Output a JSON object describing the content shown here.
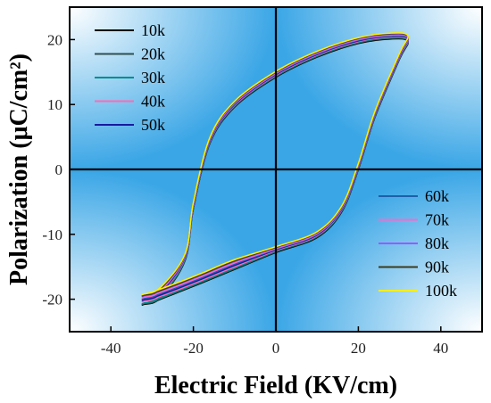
{
  "chart_data": {
    "type": "line",
    "xlabel": "Electric Field (KV/cm)",
    "ylabel": "Polarization (μC/cm²)",
    "xlim": [
      -50,
      50
    ],
    "ylim": [
      -25,
      25
    ],
    "x_ticks": [
      "-40",
      "-20",
      "0",
      "20",
      "40"
    ],
    "y_ticks": [
      "-20",
      "-10",
      "0",
      "10",
      "20"
    ],
    "legend_left": [
      "10k",
      "20k",
      "30k",
      "40k",
      "50k"
    ],
    "legend_right": [
      "60k",
      "70k",
      "80k",
      "90k",
      "100k"
    ],
    "background": "light-blue radial gradient quadrants",
    "series": [
      {
        "name": "10k",
        "color": "#000000",
        "x": [
          -32,
          -28,
          -22,
          -20,
          -16,
          -10,
          0,
          10,
          20,
          28,
          32,
          30,
          24,
          20,
          16,
          10,
          0,
          -10,
          -18,
          -24,
          -30,
          -32
        ],
        "y": [
          -20.8,
          -19.8,
          -14,
          -6,
          4,
          9.6,
          14.2,
          17.3,
          19.4,
          20.1,
          19.7,
          17,
          8,
          0,
          -6.5,
          -10.5,
          -12.8,
          -15.4,
          -17.5,
          -19,
          -20.5,
          -20.8
        ]
      },
      {
        "name": "20k",
        "color": "#2f4f4f",
        "x": [
          -32,
          -28,
          -22,
          -20,
          -16,
          -10,
          0,
          10,
          20,
          28,
          32,
          30,
          24,
          20,
          16,
          10,
          0,
          -10,
          -18,
          -24,
          -30,
          -32
        ],
        "y": [
          -20.7,
          -19.7,
          -13.9,
          -5.9,
          4.1,
          9.7,
          14.3,
          17.4,
          19.5,
          20.2,
          19.8,
          17.1,
          8.1,
          0.1,
          -6.4,
          -10.4,
          -12.7,
          -15.3,
          -17.4,
          -18.9,
          -20.4,
          -20.7
        ]
      },
      {
        "name": "30k",
        "color": "#008b8b",
        "x": [
          -32,
          -28,
          -22,
          -20,
          -16,
          -10,
          0,
          10,
          20,
          28,
          32,
          30,
          24,
          20,
          16,
          10,
          0,
          -10,
          -18,
          -24,
          -30,
          -32
        ],
        "y": [
          -20.6,
          -19.6,
          -13.8,
          -5.8,
          4.2,
          9.8,
          14.4,
          17.5,
          19.6,
          20.3,
          19.9,
          17.2,
          8.2,
          0.2,
          -6.3,
          -10.3,
          -12.6,
          -15.2,
          -17.3,
          -18.8,
          -20.3,
          -20.6
        ]
      },
      {
        "name": "40k",
        "color": "#ff69b4",
        "x": [
          -32,
          -28,
          -22,
          -20,
          -16,
          -10,
          0,
          10,
          20,
          28,
          32,
          30,
          24,
          20,
          16,
          10,
          0,
          -10,
          -18,
          -24,
          -30,
          -32
        ],
        "y": [
          -20.3,
          -19.3,
          -13.6,
          -5.7,
          4.3,
          9.9,
          14.5,
          17.6,
          19.7,
          20.4,
          20,
          17.3,
          8.3,
          0.3,
          -6.2,
          -10.2,
          -12.5,
          -15,
          -17.1,
          -18.6,
          -20,
          -20.3
        ]
      },
      {
        "name": "50k",
        "color": "#1a1aa0",
        "x": [
          -32,
          -28,
          -22,
          -20,
          -16,
          -10,
          0,
          10,
          20,
          28,
          32,
          30,
          24,
          20,
          16,
          10,
          0,
          -10,
          -18,
          -24,
          -30,
          -32
        ],
        "y": [
          -20.1,
          -19.1,
          -13.5,
          -5.6,
          4.4,
          10,
          14.6,
          17.7,
          19.8,
          20.5,
          20.1,
          17.4,
          8.4,
          0.4,
          -6.1,
          -10.1,
          -12.4,
          -14.8,
          -16.9,
          -18.4,
          -19.8,
          -20.1
        ]
      },
      {
        "name": "60k",
        "color": "#1f5fa8",
        "x": [
          -32,
          -28,
          -22,
          -20,
          -16,
          -10,
          0,
          10,
          20,
          28,
          32,
          30,
          24,
          20,
          16,
          10,
          0,
          -10,
          -18,
          -24,
          -30,
          -32
        ],
        "y": [
          -19.9,
          -18.9,
          -13.4,
          -5.5,
          4.5,
          10.1,
          14.7,
          17.8,
          19.9,
          20.6,
          20.2,
          17.5,
          8.5,
          0.5,
          -6,
          -10,
          -12.3,
          -14.6,
          -16.7,
          -18.2,
          -19.6,
          -19.9
        ]
      },
      {
        "name": "70k",
        "color": "#ff66cc",
        "x": [
          -32,
          -28,
          -22,
          -20,
          -16,
          -10,
          0,
          10,
          20,
          28,
          32,
          30,
          24,
          20,
          16,
          10,
          0,
          -10,
          -18,
          -24,
          -30,
          -32
        ],
        "y": [
          -19.7,
          -18.7,
          -13.3,
          -5.4,
          4.6,
          10.2,
          14.8,
          17.9,
          20,
          20.7,
          20.3,
          17.6,
          8.6,
          0.6,
          -5.9,
          -9.9,
          -12.2,
          -14.4,
          -16.5,
          -18,
          -19.4,
          -19.7
        ]
      },
      {
        "name": "80k",
        "color": "#9b59ff",
        "x": [
          -32,
          -28,
          -22,
          -20,
          -16,
          -10,
          0,
          10,
          20,
          28,
          32,
          30,
          24,
          20,
          16,
          10,
          0,
          -10,
          -18,
          -24,
          -30,
          -32
        ],
        "y": [
          -19.5,
          -18.5,
          -13.2,
          -5.3,
          4.7,
          10.3,
          14.9,
          18,
          20.1,
          20.8,
          20.4,
          17.7,
          8.7,
          0.7,
          -5.8,
          -9.8,
          -12.1,
          -14.2,
          -16.3,
          -17.8,
          -19.2,
          -19.5
        ]
      },
      {
        "name": "90k",
        "color": "#3d3a1a",
        "x": [
          -32,
          -28,
          -22,
          -20,
          -16,
          -10,
          0,
          10,
          20,
          28,
          32,
          30,
          24,
          20,
          16,
          10,
          0,
          -10,
          -18,
          -24,
          -30,
          -32
        ],
        "y": [
          -19.4,
          -18.4,
          -13.1,
          -5.2,
          4.8,
          10.4,
          15,
          18.1,
          20.2,
          20.9,
          20.5,
          17.8,
          8.8,
          0.8,
          -5.7,
          -9.7,
          -12,
          -14.1,
          -16.2,
          -17.7,
          -19.1,
          -19.4
        ]
      },
      {
        "name": "100k",
        "color": "#ffee00",
        "x": [
          -32,
          -28,
          -22,
          -20,
          -16,
          -10,
          0,
          10,
          20,
          28,
          32,
          30,
          24,
          20,
          16,
          10,
          0,
          -10,
          -18,
          -24,
          -30,
          -32
        ],
        "y": [
          -19.2,
          -18.2,
          -13,
          -5.1,
          4.9,
          10.5,
          15.1,
          18.2,
          20.3,
          21,
          20.6,
          17.9,
          8.9,
          0.9,
          -5.6,
          -9.6,
          -11.9,
          -13.9,
          -16,
          -17.5,
          -18.9,
          -19.2
        ]
      }
    ]
  }
}
